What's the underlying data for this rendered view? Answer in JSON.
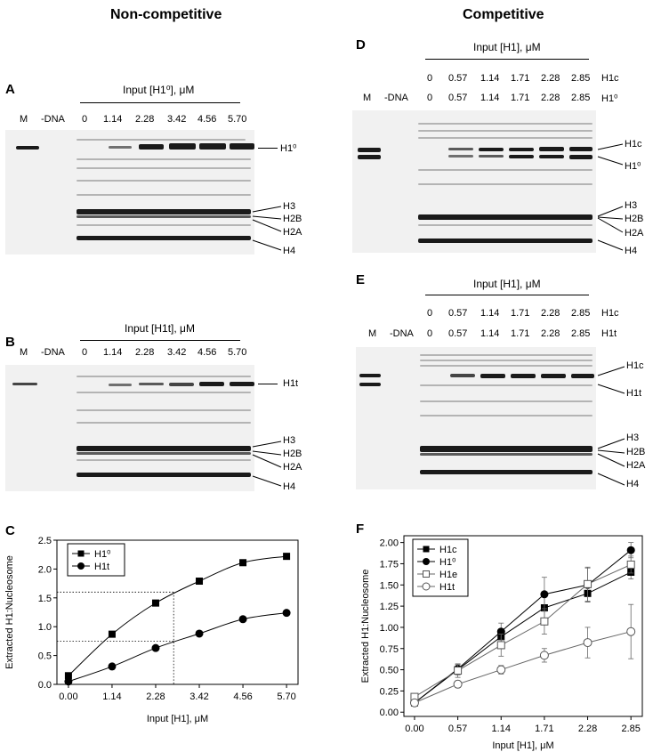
{
  "sections": {
    "noncompetitive": "Non-competitive",
    "competitive": "Competitive"
  },
  "panels": {
    "A": {
      "letter": "A",
      "input_title": "Input [H1⁰], μM",
      "lanes": [
        "M",
        "-DNA",
        "0",
        "1.14",
        "2.28",
        "3.42",
        "4.56",
        "5.70"
      ],
      "bands": [
        "H1⁰",
        "H3",
        "H2B",
        "H2A",
        "H4"
      ]
    },
    "B": {
      "letter": "B",
      "input_title": "Input [H1t], μM",
      "lanes": [
        "M",
        "-DNA",
        "0",
        "1.14",
        "2.28",
        "3.42",
        "4.56",
        "5.70"
      ],
      "bands": [
        "H1t",
        "H3",
        "H2B",
        "H2A",
        "H4"
      ]
    },
    "D": {
      "letter": "D",
      "input_title": "Input [H1], μM",
      "row1": [
        "0",
        "0.57",
        "1.14",
        "1.71",
        "2.28",
        "2.85",
        "H1c"
      ],
      "row2": [
        "M",
        "-DNA",
        "0",
        "0.57",
        "1.14",
        "1.71",
        "2.28",
        "2.85",
        "H1⁰"
      ],
      "bands": [
        "H1c",
        "H1⁰",
        "H3",
        "H2B",
        "H2A",
        "H4"
      ]
    },
    "E": {
      "letter": "E",
      "input_title": "Input [H1], μM",
      "row1": [
        "0",
        "0.57",
        "1.14",
        "1.71",
        "2.28",
        "2.85",
        "H1c"
      ],
      "row2": [
        "M",
        "-DNA",
        "0",
        "0.57",
        "1.14",
        "1.71",
        "2.28",
        "2.85",
        "H1t"
      ],
      "bands": [
        "H1c",
        "H1t",
        "H3",
        "H2B",
        "H2A",
        "H4"
      ]
    },
    "C": {
      "letter": "C"
    },
    "F": {
      "letter": "F"
    }
  },
  "chart_data": [
    {
      "type": "line",
      "panel": "C",
      "title": "",
      "xlabel": "Input [H1], μM",
      "ylabel": "Extracted H1:Nucleosome",
      "x": [
        0.0,
        1.14,
        2.28,
        3.42,
        4.56,
        5.7
      ],
      "x_tick_labels": [
        "0.00",
        "1.14",
        "2.28",
        "3.42",
        "4.56",
        "5.70"
      ],
      "y_tick_labels": [
        "0.0",
        "0.5",
        "1.0",
        "1.5",
        "2.0",
        "2.5"
      ],
      "xlim": [
        -0.3,
        6.0
      ],
      "ylim": [
        0,
        2.5
      ],
      "legend": "top-left",
      "series": [
        {
          "name": "H1⁰",
          "marker": "filled-square",
          "values": [
            0.15,
            0.87,
            1.41,
            1.79,
            2.11,
            2.22
          ]
        },
        {
          "name": "H1t",
          "marker": "filled-circle",
          "values": [
            0.05,
            0.31,
            0.63,
            0.88,
            1.13,
            1.24
          ]
        }
      ],
      "reference_lines": {
        "x": 2.75,
        "y": [
          1.6,
          0.75
        ]
      }
    },
    {
      "type": "line",
      "panel": "F",
      "title": "",
      "xlabel": "Input [H1], μM",
      "ylabel": "Extracted H1:Nucleosome",
      "x": [
        0.0,
        0.57,
        1.14,
        1.71,
        2.28,
        2.85
      ],
      "x_tick_labels": [
        "0.00",
        "0.57",
        "1.14",
        "1.71",
        "2.28",
        "2.85"
      ],
      "y_tick_labels": [
        "0.00",
        "0.25",
        "0.50",
        "0.75",
        "1.00",
        "1.25",
        "1.50",
        "1.75",
        "2.00"
      ],
      "xlim": [
        -0.14,
        3.0
      ],
      "ylim": [
        -0.05,
        2.08
      ],
      "legend": "top-left",
      "series": [
        {
          "name": "H1c",
          "marker": "filled-square",
          "values": [
            0.11,
            0.5,
            0.89,
            1.23,
            1.4,
            1.65
          ],
          "error": [
            0.03,
            0.06,
            0.08,
            0.15,
            0.1,
            0.08
          ]
        },
        {
          "name": "H1⁰",
          "marker": "filled-circle",
          "values": [
            0.11,
            0.51,
            0.95,
            1.39,
            1.5,
            1.91
          ],
          "error": [
            0.03,
            0.05,
            0.1,
            0.2,
            0.2,
            0.09
          ]
        },
        {
          "name": "H1e",
          "marker": "open-square",
          "values": [
            0.18,
            0.49,
            0.79,
            1.07,
            1.51,
            1.74
          ],
          "error": [
            0.03,
            0.08,
            0.13,
            0.15,
            0.2,
            0.1
          ]
        },
        {
          "name": "H1t",
          "marker": "open-circle",
          "values": [
            0.11,
            0.33,
            0.5,
            0.67,
            0.82,
            0.95
          ],
          "error": [
            0.03,
            0.04,
            0.05,
            0.08,
            0.18,
            0.32
          ]
        }
      ]
    }
  ]
}
